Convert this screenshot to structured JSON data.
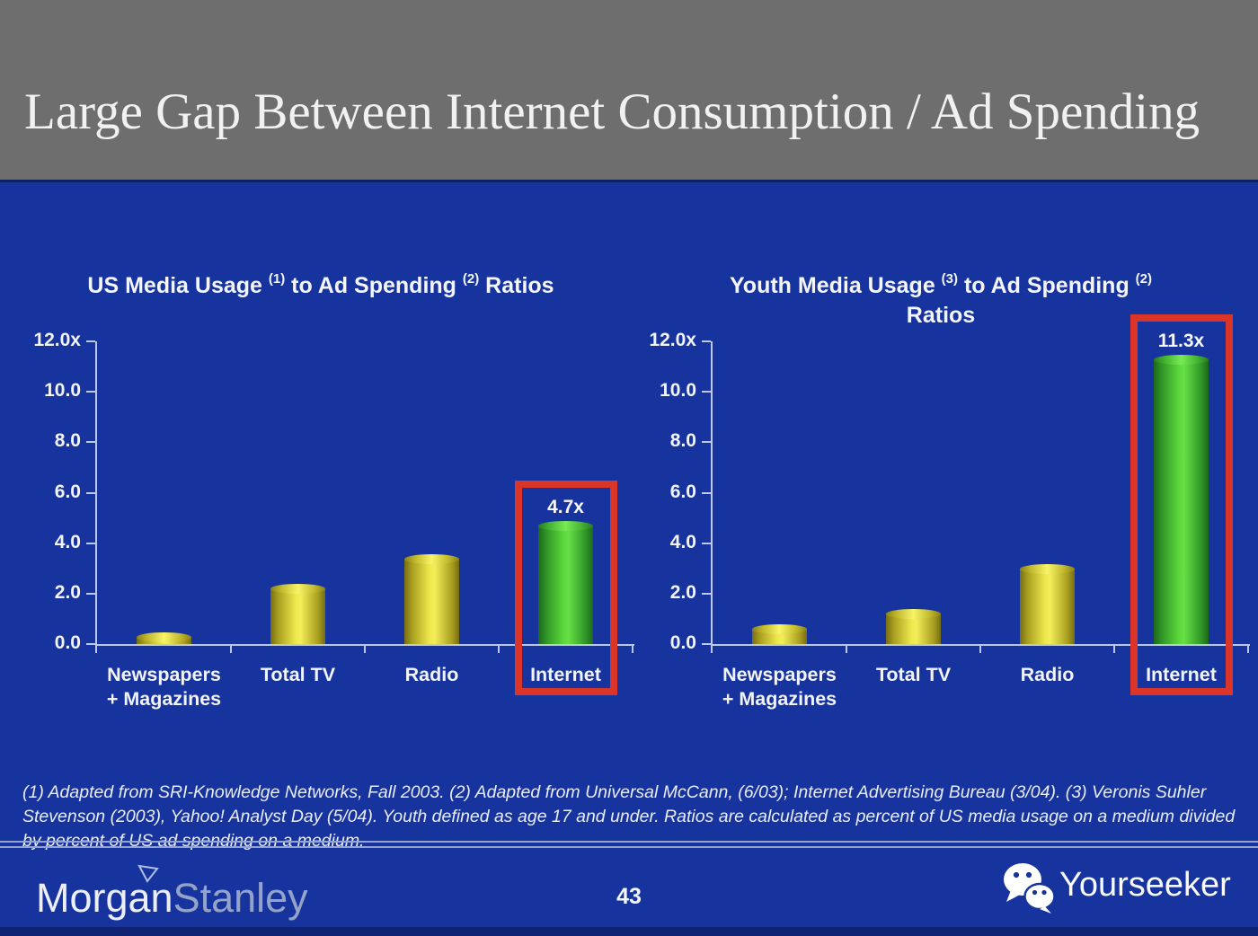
{
  "header": {
    "title": "Large Gap Between Internet Consumption / Ad Spending"
  },
  "charts": [
    {
      "title": {
        "part1": "US Media Usage ",
        "sup1": "(1)",
        "part2": " to Ad Spending ",
        "sup2": "(2)",
        "part3": " Ratios"
      }
    },
    {
      "title": {
        "part1": "Youth Media Usage ",
        "sup1": "(3)",
        "part2": " to Ad Spending ",
        "sup2": "(2)",
        "part3": "",
        "line2": "Ratios"
      }
    }
  ],
  "chart_data": [
    {
      "type": "bar",
      "title": "US Media Usage (1) to Ad Spending (2) Ratios",
      "categories": [
        "Newspapers + Magazines",
        "Total TV",
        "Radio",
        "Internet"
      ],
      "category_label_lines": [
        [
          "Newspapers",
          "+ Magazines"
        ],
        [
          "Total TV"
        ],
        [
          "Radio"
        ],
        [
          "Internet"
        ]
      ],
      "values": [
        0.3,
        2.2,
        3.4,
        4.7
      ],
      "bar_colors": [
        "yellow",
        "yellow",
        "yellow",
        "green"
      ],
      "value_labels": [
        null,
        null,
        null,
        "4.7x"
      ],
      "highlight_index": 3,
      "xlabel": "",
      "ylabel": "",
      "ylim": [
        0,
        12
      ],
      "ytick_values": [
        12,
        10,
        8,
        6,
        4,
        2,
        0
      ],
      "ytick_labels": [
        "12.0x",
        "10.0",
        "8.0",
        "6.0",
        "4.0",
        "2.0",
        "0.0"
      ],
      "grid": false,
      "legend": false
    },
    {
      "type": "bar",
      "title": "Youth Media Usage (3) to Ad Spending (2) Ratios",
      "categories": [
        "Newspapers + Magazines",
        "Total TV",
        "Radio",
        "Internet"
      ],
      "category_label_lines": [
        [
          "Newspapers",
          "+ Magazines"
        ],
        [
          "Total TV"
        ],
        [
          "Radio"
        ],
        [
          "Internet"
        ]
      ],
      "values": [
        0.6,
        1.2,
        3.0,
        11.3
      ],
      "bar_colors": [
        "yellow",
        "yellow",
        "yellow",
        "green"
      ],
      "value_labels": [
        null,
        null,
        null,
        "11.3x"
      ],
      "highlight_index": 3,
      "xlabel": "",
      "ylabel": "",
      "ylim": [
        0,
        12
      ],
      "ytick_values": [
        12,
        10,
        8,
        6,
        4,
        2,
        0
      ],
      "ytick_labels": [
        "12.0x",
        "10.0",
        "8.0",
        "6.0",
        "4.0",
        "2.0",
        "0.0"
      ],
      "grid": false,
      "legend": false
    }
  ],
  "footnote": {
    "text": "(1) Adapted from SRI-Knowledge Networks, Fall 2003.  (2) Adapted from Universal McCann, (6/03); Internet Advertising Bureau (3/04). (3) Veronis Suhler Stevenson (2003), Yahoo! Analyst Day (5/04).  Youth defined as age 17 and under.  Ratios are calculated as percent of US media usage on a medium divided by percent of US ad spending on a medium."
  },
  "footer": {
    "brand_part1": "Morgan",
    "brand_part2": "Stanley",
    "page_number": "43",
    "watermark": "Yourseeker"
  },
  "colors": {
    "background_blue": "#17339e",
    "header_gray": "#6e6e6e",
    "bar_yellow": "#f0ea4e",
    "bar_green": "#57d23b",
    "highlight_red": "#d93529",
    "axis_line": "#bcc8ec",
    "text_white": "#f4f6fb"
  }
}
